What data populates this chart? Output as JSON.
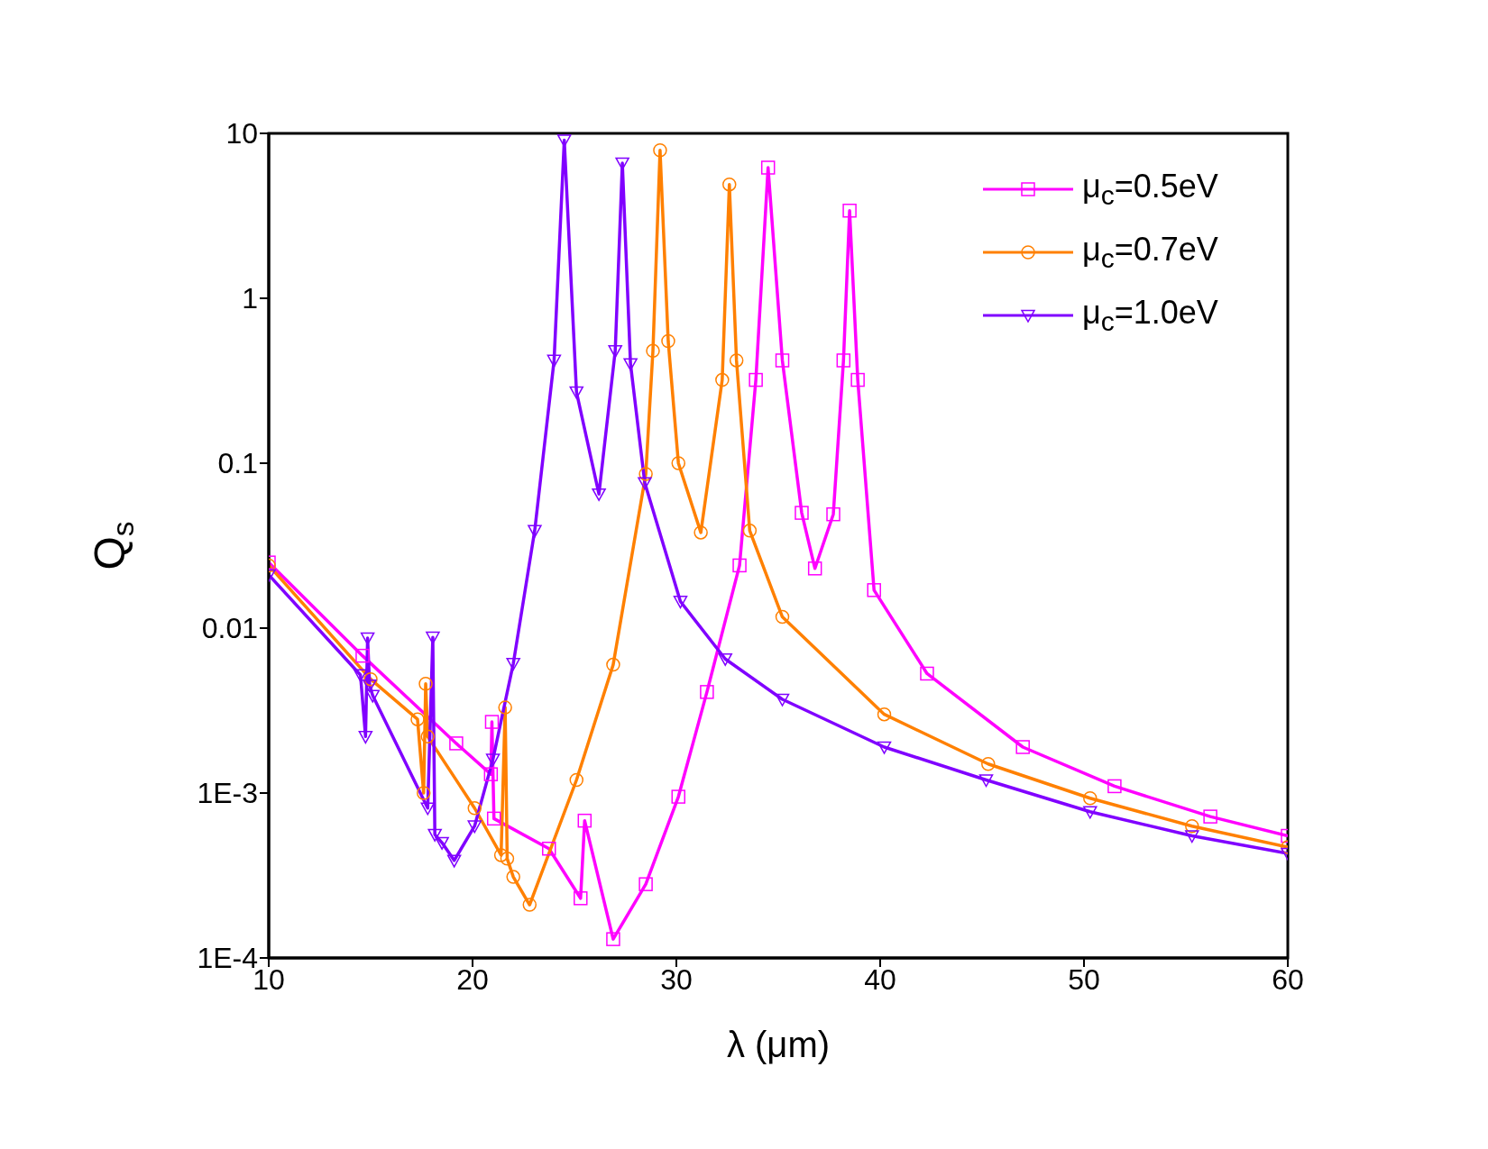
{
  "chart_data": {
    "type": "line",
    "xlabel": "λ (μm)",
    "ylabel": "Q$_{s}$",
    "log": "y",
    "xlim": [
      10,
      60
    ],
    "xticks": [
      10,
      20,
      30,
      40,
      50,
      60
    ],
    "ylim": [
      0.0001,
      10
    ],
    "yticks": [
      {
        "value": 0.0001,
        "label": "1E-4"
      },
      {
        "value": 0.001,
        "label": "1E-3"
      },
      0.01,
      0.1,
      1,
      10
    ],
    "grid": false,
    "legend": "top right",
    "line_style": "solid",
    "series": [
      {
        "name": "μ$_{c}$=0.5eV",
        "color": "#ff00ff",
        "marker": "square",
        "x": [
          10,
          14.6,
          19.2,
          20.9,
          20.95,
          21.05,
          23.75,
          25.3,
          25.5,
          26.9,
          28.5,
          30.1,
          31.5,
          33.1,
          33.9,
          34.5,
          35.2,
          36.15,
          36.8,
          37.7,
          38.2,
          38.5,
          38.9,
          39.7,
          42.3,
          47,
          51.5,
          56.2,
          60
        ],
        "values": [
          0.025,
          0.0068,
          0.002,
          0.0013,
          0.0027,
          0.0007,
          0.00046,
          0.00023,
          0.00068,
          0.00013,
          0.00028,
          0.00095,
          0.0041,
          0.024,
          0.32,
          6.2,
          0.42,
          0.05,
          0.023,
          0.049,
          0.42,
          3.4,
          0.32,
          0.017,
          0.0053,
          0.0019,
          0.0011,
          0.00072,
          0.00055
        ]
      },
      {
        "name": "μ$_{c}$=0.7eV",
        "color": "#ff8000",
        "marker": "circle",
        "x": [
          10,
          15,
          17.3,
          17.6,
          17.7,
          17.8,
          20.1,
          21.4,
          21.6,
          21.7,
          22,
          22.8,
          25.1,
          26.9,
          28.5,
          28.85,
          29.2,
          29.6,
          30.1,
          31.2,
          32.25,
          32.6,
          32.95,
          33.6,
          35.2,
          40.2,
          45.3,
          50.3,
          55.3,
          60
        ],
        "values": [
          0.024,
          0.0049,
          0.0028,
          0.001,
          0.0046,
          0.0022,
          0.00081,
          0.00042,
          0.0033,
          0.0004,
          0.00031,
          0.00021,
          0.0012,
          0.006,
          0.086,
          0.48,
          7.9,
          0.55,
          0.1,
          0.038,
          0.32,
          4.9,
          0.42,
          0.039,
          0.0117,
          0.003,
          0.0015,
          0.00093,
          0.00063,
          0.00047
        ]
      },
      {
        "name": "μ$_{c}$=1.0eV",
        "color": "#8000ff",
        "marker": "triangle",
        "x": [
          10,
          14.5,
          14.75,
          14.85,
          14.95,
          15.1,
          17.8,
          18.05,
          18.15,
          18.5,
          19.1,
          20.1,
          21,
          22,
          23.05,
          24,
          24.5,
          25.1,
          26.2,
          27,
          27.35,
          27.75,
          28.45,
          30.2,
          32.4,
          35.2,
          40.2,
          45.2,
          50.3,
          55.3,
          60
        ],
        "values": [
          0.021,
          0.0052,
          0.0022,
          0.0087,
          0.0045,
          0.0039,
          0.00081,
          0.0088,
          0.00056,
          0.0005,
          0.00039,
          0.00063,
          0.0016,
          0.0061,
          0.039,
          0.42,
          9.1,
          0.27,
          0.065,
          0.48,
          6.6,
          0.4,
          0.076,
          0.0145,
          0.0065,
          0.0037,
          0.0019,
          0.0012,
          0.00077,
          0.00055,
          0.00043
        ]
      }
    ]
  }
}
